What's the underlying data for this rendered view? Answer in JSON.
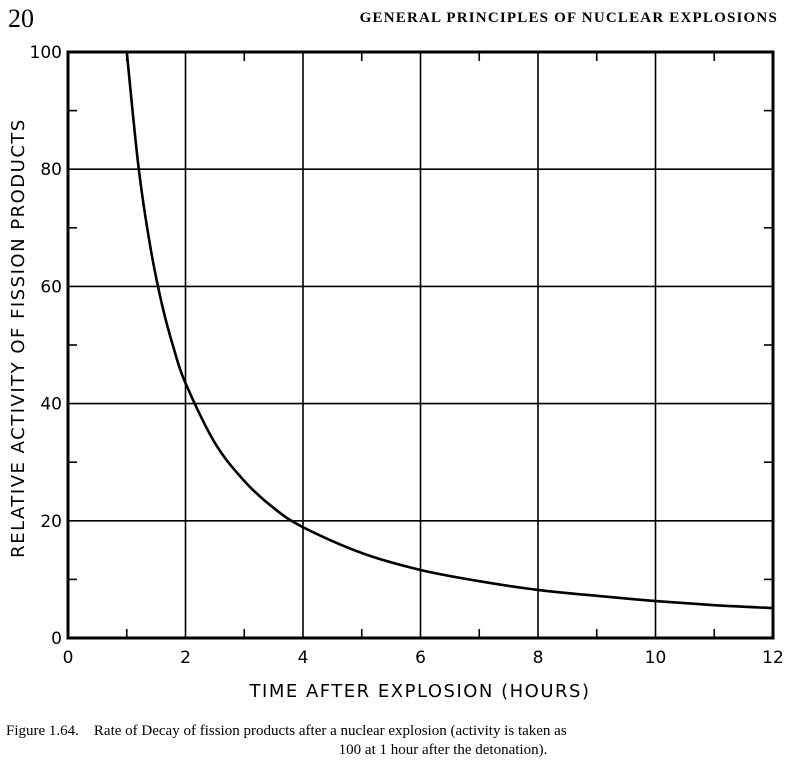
{
  "page": {
    "number": "20",
    "running_head": "GENERAL PRINCIPLES OF NUCLEAR EXPLOSIONS"
  },
  "caption": {
    "label": "Figure 1.64.",
    "text_line1": "Rate of Decay of fission products after a nuclear explosion (activity is taken as",
    "text_line2": "100 at 1 hour after the detonation)."
  },
  "chart_data": {
    "type": "line",
    "title": "",
    "xlabel": "TIME AFTER EXPLOSION (HOURS)",
    "ylabel": "RELATIVE ACTIVITY OF FISSION PRODUCTS",
    "xlim": [
      0,
      12
    ],
    "ylim": [
      0,
      100
    ],
    "x_ticks": [
      "0",
      "2",
      "4",
      "6",
      "8",
      "10",
      "12"
    ],
    "y_ticks": [
      "0",
      "20",
      "40",
      "60",
      "80",
      "100"
    ],
    "grid": true,
    "legend": "none",
    "line_color": "#000000",
    "series": [
      {
        "x": [
          1,
          1.2,
          1.4,
          1.6,
          1.8,
          2,
          2.5,
          3,
          3.5,
          4,
          5,
          6,
          7,
          8,
          9,
          10,
          11,
          12
        ],
        "y": [
          100,
          80.4,
          66.8,
          56.9,
          49.4,
          43.5,
          33.3,
          26.8,
          22.2,
          18.9,
          14.5,
          11.6,
          9.7,
          8.2,
          7.2,
          6.3,
          5.6,
          5.1
        ]
      }
    ]
  }
}
